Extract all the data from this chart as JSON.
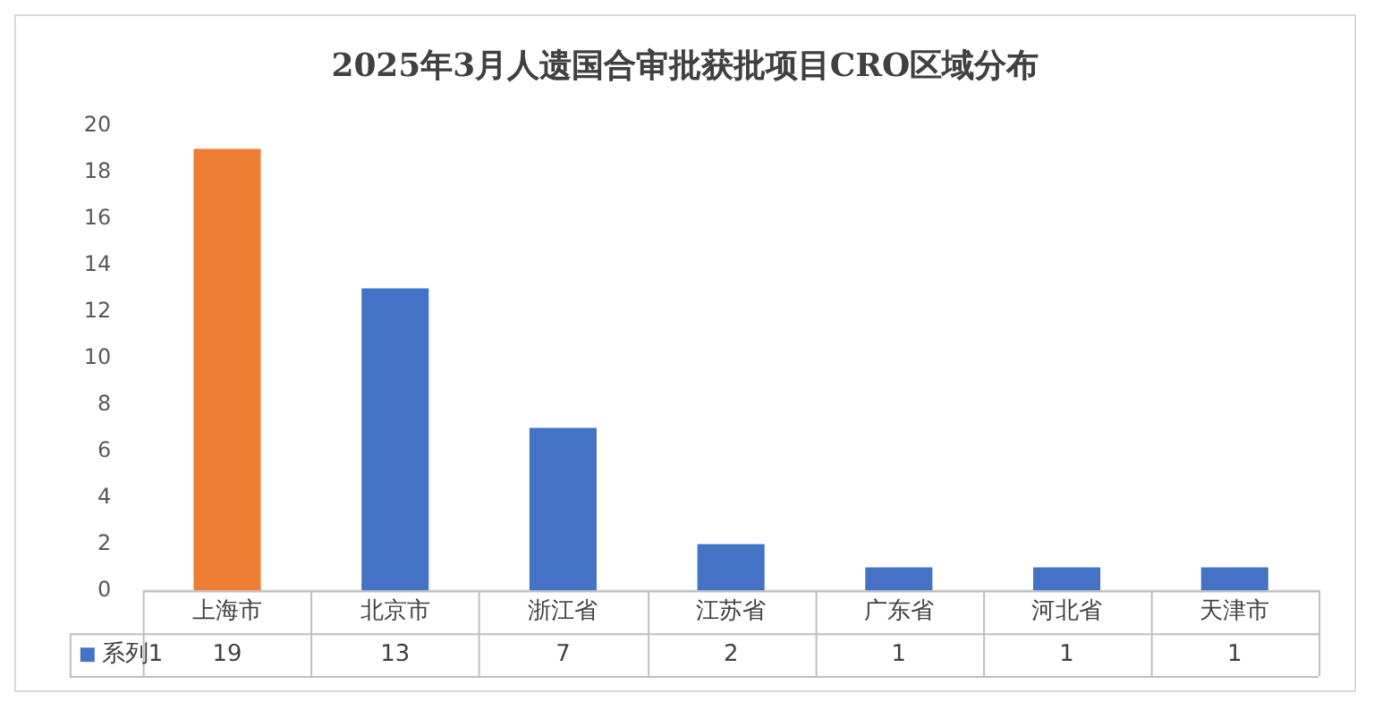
{
  "chart_data": {
    "type": "bar",
    "title": "2025年3月人遗国合审批获批项目CRO区域分布",
    "categories": [
      "上海市",
      "北京市",
      "浙江省",
      "江苏省",
      "广东省",
      "河北省",
      "天津市"
    ],
    "series": [
      {
        "name": "系列1",
        "color": "#4472c4",
        "colors": [
          "#ed7d31",
          "#4472c4",
          "#4472c4",
          "#4472c4",
          "#4472c4",
          "#4472c4",
          "#4472c4"
        ],
        "values": [
          19,
          13,
          7,
          2,
          1,
          1,
          1
        ]
      }
    ],
    "ylim": [
      0,
      20
    ],
    "yticks": [
      0,
      2,
      4,
      6,
      8,
      10,
      12,
      14,
      16,
      18,
      20
    ],
    "grid": false,
    "legend": "bottom",
    "data_labels": true
  }
}
